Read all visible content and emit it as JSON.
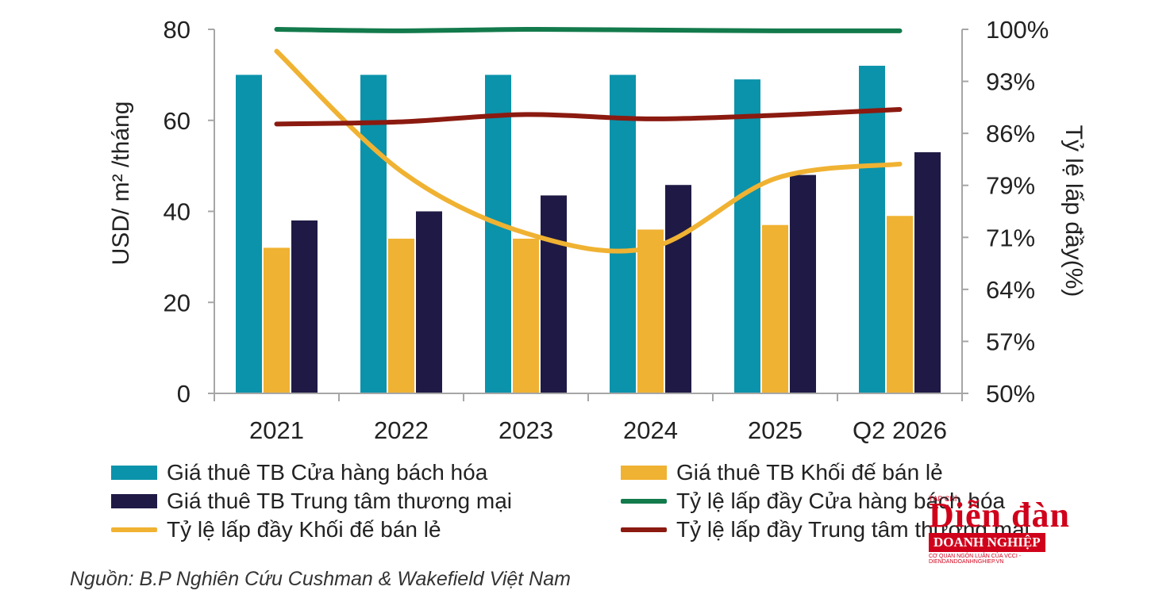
{
  "chart_data": {
    "type": "bar",
    "categories": [
      "2021",
      "2022",
      "2023",
      "2024",
      "2025",
      "Q2 2026"
    ],
    "ylabel_left": "USD/ m² /tháng",
    "ylabel_right": "Tỷ lệ lấp đầy(%)",
    "ylim_left": [
      0,
      80
    ],
    "yticks_left": [
      "0",
      "20",
      "40",
      "60",
      "80"
    ],
    "ylim_right": [
      50,
      100
    ],
    "yticks_right": [
      "50%",
      "57%",
      "64%",
      "71%",
      "79%",
      "86%",
      "93%",
      "100%"
    ],
    "grid": false,
    "bar_series": [
      {
        "name": "Giá thuê TB Cửa hàng bách hóa",
        "color": "#0b93ab",
        "values": [
          70,
          70,
          70,
          70,
          69,
          72
        ]
      },
      {
        "name": "Giá thuê TB Khối đế bán lẻ",
        "color": "#f0b232",
        "values": [
          32,
          34,
          34,
          36,
          37,
          39
        ]
      },
      {
        "name": "Giá thuê TB Trung tâm thương mại",
        "color": "#1f1a45",
        "values": [
          38,
          40,
          43.5,
          45.8,
          48,
          53
        ]
      }
    ],
    "line_series": [
      {
        "name": "Tỷ lệ lấp đầy Cửa hàng bách hóa",
        "color": "#137a4c",
        "values": [
          100,
          99.8,
          100,
          99.9,
          99.8,
          99.8
        ]
      },
      {
        "name": "Tỷ lệ lấp đầy Khối đế bán lẻ",
        "color": "#f0b232",
        "values": [
          97,
          80.5,
          72,
          70,
          79.5,
          81.5
        ]
      },
      {
        "name": "Tỷ lệ lấp đầy Trung tâm thương mại",
        "color": "#8b1a10",
        "values": [
          87,
          87.3,
          88.3,
          87.7,
          88.2,
          89
        ]
      }
    ]
  },
  "source_text": "Nguồn: B.P Nghiên Cứu Cushman & Wakefield Việt Nam",
  "logo": {
    "tag": "TẠP CHÍ",
    "title": "Diễn đàn",
    "band": "DOANH NGHIỆP",
    "sub": "CƠ QUAN NGÔN LUẬN CỦA VCCI - DIENDANDOANHNGHIEP.VN"
  }
}
